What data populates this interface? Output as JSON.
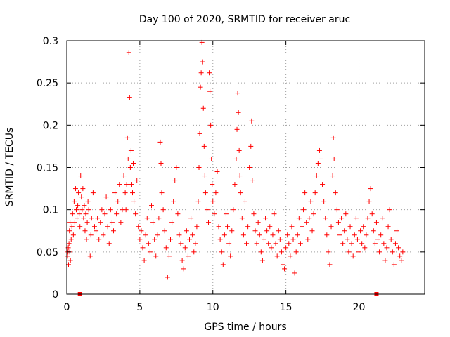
{
  "chart_data": {
    "type": "scatter",
    "title": "Day 100 of 2020, SRMTID for receiver aruc",
    "xlabel": "GPS time / hours",
    "ylabel": "SRMTID / TECUs",
    "xlim": [
      0,
      24.5
    ],
    "ylim": [
      0,
      0.3
    ],
    "xticks": [
      0,
      5,
      10,
      15,
      20
    ],
    "xtick_labels": [
      "0",
      "5",
      "10",
      "15",
      "20"
    ],
    "yticks": [
      0,
      0.05,
      0.1,
      0.15,
      0.2,
      0.25,
      0.3
    ],
    "ytick_labels": [
      "0",
      "0.05",
      "0.1",
      "0.15",
      "0.2",
      "0.25",
      "0.3"
    ],
    "grid": true,
    "marker": "+",
    "color": "#ff0000",
    "baseline_flags": [
      {
        "x": 0.9,
        "y": 0
      },
      {
        "x": 21.2,
        "y": 0
      }
    ],
    "series": [
      {
        "name": "SRMTID",
        "points": [
          [
            0.05,
            0.045
          ],
          [
            0.08,
            0.05
          ],
          [
            0.1,
            0.055
          ],
          [
            0.12,
            0.035
          ],
          [
            0.15,
            0.06
          ],
          [
            0.18,
            0.075
          ],
          [
            0.2,
            0.05
          ],
          [
            0.22,
            0.085
          ],
          [
            0.25,
            0.04
          ],
          [
            0.3,
            0.065
          ],
          [
            0.35,
            0.08
          ],
          [
            0.4,
            0.095
          ],
          [
            0.45,
            0.07
          ],
          [
            0.5,
            0.11
          ],
          [
            0.55,
            0.085
          ],
          [
            0.6,
            0.125
          ],
          [
            0.65,
            0.1
          ],
          [
            0.7,
            0.09
          ],
          [
            0.75,
            0.105
          ],
          [
            0.8,
            0.12
          ],
          [
            0.85,
            0.095
          ],
          [
            0.9,
            0.08
          ],
          [
            0.95,
            0.14
          ],
          [
            1.0,
            0.115
          ],
          [
            1.05,
            0.1
          ],
          [
            1.1,
            0.125
          ],
          [
            1.15,
            0.09
          ],
          [
            1.2,
            0.105
          ],
          [
            1.25,
            0.075
          ],
          [
            1.3,
            0.095
          ],
          [
            1.35,
            0.065
          ],
          [
            1.4,
            0.085
          ],
          [
            1.45,
            0.11
          ],
          [
            1.5,
            0.1
          ],
          [
            1.6,
            0.045
          ],
          [
            1.65,
            0.07
          ],
          [
            1.7,
            0.09
          ],
          [
            1.8,
            0.12
          ],
          [
            1.9,
            0.08
          ],
          [
            2.0,
            0.075
          ],
          [
            2.1,
            0.09
          ],
          [
            2.2,
            0.065
          ],
          [
            2.3,
            0.085
          ],
          [
            2.4,
            0.1
          ],
          [
            2.5,
            0.07
          ],
          [
            2.6,
            0.095
          ],
          [
            2.7,
            0.115
          ],
          [
            2.8,
            0.08
          ],
          [
            2.9,
            0.06
          ],
          [
            3.0,
            0.1
          ],
          [
            3.1,
            0.085
          ],
          [
            3.2,
            0.075
          ],
          [
            3.3,
            0.12
          ],
          [
            3.4,
            0.095
          ],
          [
            3.5,
            0.11
          ],
          [
            3.6,
            0.13
          ],
          [
            3.7,
            0.085
          ],
          [
            3.8,
            0.1
          ],
          [
            3.9,
            0.14
          ],
          [
            4.0,
            0.12
          ],
          [
            4.05,
            0.1
          ],
          [
            4.1,
            0.13
          ],
          [
            4.15,
            0.185
          ],
          [
            4.2,
            0.16
          ],
          [
            4.25,
            0.286
          ],
          [
            4.3,
            0.233
          ],
          [
            4.35,
            0.15
          ],
          [
            4.4,
            0.17
          ],
          [
            4.45,
            0.13
          ],
          [
            4.5,
            0.12
          ],
          [
            4.55,
            0.155
          ],
          [
            4.6,
            0.11
          ],
          [
            4.7,
            0.095
          ],
          [
            4.8,
            0.135
          ],
          [
            4.9,
            0.08
          ],
          [
            5.0,
            0.065
          ],
          [
            5.1,
            0.075
          ],
          [
            5.2,
            0.055
          ],
          [
            5.3,
            0.04
          ],
          [
            5.4,
            0.07
          ],
          [
            5.5,
            0.09
          ],
          [
            5.6,
            0.06
          ],
          [
            5.7,
            0.05
          ],
          [
            5.8,
            0.105
          ],
          [
            5.9,
            0.085
          ],
          [
            6.0,
            0.065
          ],
          [
            6.1,
            0.045
          ],
          [
            6.2,
            0.07
          ],
          [
            6.3,
            0.09
          ],
          [
            6.4,
            0.18
          ],
          [
            6.45,
            0.155
          ],
          [
            6.5,
            0.12
          ],
          [
            6.6,
            0.1
          ],
          [
            6.7,
            0.075
          ],
          [
            6.8,
            0.055
          ],
          [
            6.9,
            0.02
          ],
          [
            7.0,
            0.045
          ],
          [
            7.1,
            0.065
          ],
          [
            7.2,
            0.085
          ],
          [
            7.3,
            0.11
          ],
          [
            7.4,
            0.135
          ],
          [
            7.5,
            0.15
          ],
          [
            7.6,
            0.095
          ],
          [
            7.7,
            0.07
          ],
          [
            7.8,
            0.06
          ],
          [
            7.9,
            0.04
          ],
          [
            8.0,
            0.03
          ],
          [
            8.1,
            0.055
          ],
          [
            8.2,
            0.075
          ],
          [
            8.3,
            0.045
          ],
          [
            8.4,
            0.065
          ],
          [
            8.5,
            0.09
          ],
          [
            8.6,
            0.07
          ],
          [
            8.7,
            0.05
          ],
          [
            8.8,
            0.06
          ],
          [
            8.9,
            0.08
          ],
          [
            9.0,
            0.11
          ],
          [
            9.05,
            0.15
          ],
          [
            9.1,
            0.19
          ],
          [
            9.15,
            0.245
          ],
          [
            9.2,
            0.262
          ],
          [
            9.25,
            0.298
          ],
          [
            9.3,
            0.275
          ],
          [
            9.35,
            0.22
          ],
          [
            9.4,
            0.175
          ],
          [
            9.45,
            0.14
          ],
          [
            9.5,
            0.12
          ],
          [
            9.6,
            0.1
          ],
          [
            9.7,
            0.085
          ],
          [
            9.75,
            0.262
          ],
          [
            9.8,
            0.24
          ],
          [
            9.85,
            0.2
          ],
          [
            9.9,
            0.16
          ],
          [
            9.95,
            0.13
          ],
          [
            10.0,
            0.11
          ],
          [
            10.1,
            0.095
          ],
          [
            10.2,
            0.12
          ],
          [
            10.3,
            0.145
          ],
          [
            10.4,
            0.08
          ],
          [
            10.5,
            0.065
          ],
          [
            10.6,
            0.05
          ],
          [
            10.7,
            0.035
          ],
          [
            10.8,
            0.07
          ],
          [
            10.9,
            0.095
          ],
          [
            11.0,
            0.08
          ],
          [
            11.1,
            0.06
          ],
          [
            11.2,
            0.045
          ],
          [
            11.3,
            0.075
          ],
          [
            11.4,
            0.1
          ],
          [
            11.5,
            0.13
          ],
          [
            11.6,
            0.16
          ],
          [
            11.65,
            0.195
          ],
          [
            11.7,
            0.238
          ],
          [
            11.75,
            0.215
          ],
          [
            11.8,
            0.17
          ],
          [
            11.85,
            0.14
          ],
          [
            11.9,
            0.12
          ],
          [
            12.0,
            0.09
          ],
          [
            12.1,
            0.07
          ],
          [
            12.2,
            0.11
          ],
          [
            12.3,
            0.06
          ],
          [
            12.4,
            0.08
          ],
          [
            12.5,
            0.15
          ],
          [
            12.6,
            0.175
          ],
          [
            12.65,
            0.205
          ],
          [
            12.7,
            0.135
          ],
          [
            12.8,
            0.095
          ],
          [
            12.9,
            0.075
          ],
          [
            13.0,
            0.06
          ],
          [
            13.1,
            0.085
          ],
          [
            13.2,
            0.07
          ],
          [
            13.3,
            0.05
          ],
          [
            13.4,
            0.04
          ],
          [
            13.5,
            0.065
          ],
          [
            13.6,
            0.09
          ],
          [
            13.7,
            0.075
          ],
          [
            13.8,
            0.06
          ],
          [
            13.9,
            0.08
          ],
          [
            14.0,
            0.055
          ],
          [
            14.1,
            0.07
          ],
          [
            14.2,
            0.095
          ],
          [
            14.3,
            0.06
          ],
          [
            14.4,
            0.045
          ],
          [
            14.5,
            0.075
          ],
          [
            14.6,
            0.065
          ],
          [
            14.7,
            0.05
          ],
          [
            14.8,
            0.035
          ],
          [
            14.9,
            0.03
          ],
          [
            15.0,
            0.055
          ],
          [
            15.1,
            0.07
          ],
          [
            15.2,
            0.06
          ],
          [
            15.3,
            0.045
          ],
          [
            15.4,
            0.08
          ],
          [
            15.5,
            0.065
          ],
          [
            15.6,
            0.025
          ],
          [
            15.7,
            0.05
          ],
          [
            15.8,
            0.07
          ],
          [
            15.9,
            0.09
          ],
          [
            16.0,
            0.06
          ],
          [
            16.1,
            0.08
          ],
          [
            16.2,
            0.1
          ],
          [
            16.3,
            0.12
          ],
          [
            16.4,
            0.085
          ],
          [
            16.5,
            0.065
          ],
          [
            16.6,
            0.09
          ],
          [
            16.7,
            0.11
          ],
          [
            16.8,
            0.075
          ],
          [
            16.9,
            0.095
          ],
          [
            17.0,
            0.12
          ],
          [
            17.1,
            0.14
          ],
          [
            17.2,
            0.155
          ],
          [
            17.3,
            0.17
          ],
          [
            17.4,
            0.16
          ],
          [
            17.5,
            0.13
          ],
          [
            17.6,
            0.11
          ],
          [
            17.7,
            0.09
          ],
          [
            17.8,
            0.07
          ],
          [
            17.9,
            0.05
          ],
          [
            18.0,
            0.035
          ],
          [
            18.1,
            0.08
          ],
          [
            18.2,
            0.14
          ],
          [
            18.25,
            0.185
          ],
          [
            18.3,
            0.16
          ],
          [
            18.4,
            0.12
          ],
          [
            18.5,
            0.1
          ],
          [
            18.6,
            0.085
          ],
          [
            18.7,
            0.07
          ],
          [
            18.8,
            0.09
          ],
          [
            18.9,
            0.06
          ],
          [
            19.0,
            0.075
          ],
          [
            19.1,
            0.095
          ],
          [
            19.2,
            0.065
          ],
          [
            19.3,
            0.05
          ],
          [
            19.4,
            0.08
          ],
          [
            19.5,
            0.06
          ],
          [
            19.6,
            0.045
          ],
          [
            19.7,
            0.07
          ],
          [
            19.8,
            0.09
          ],
          [
            19.9,
            0.065
          ],
          [
            20.0,
            0.05
          ],
          [
            20.1,
            0.075
          ],
          [
            20.2,
            0.06
          ],
          [
            20.3,
            0.08
          ],
          [
            20.4,
            0.055
          ],
          [
            20.5,
            0.07
          ],
          [
            20.6,
            0.09
          ],
          [
            20.7,
            0.11
          ],
          [
            20.8,
            0.125
          ],
          [
            20.9,
            0.095
          ],
          [
            21.0,
            0.075
          ],
          [
            21.1,
            0.06
          ],
          [
            21.2,
            0.085
          ],
          [
            21.3,
            0.065
          ],
          [
            21.4,
            0.05
          ],
          [
            21.5,
            0.07
          ],
          [
            21.6,
            0.09
          ],
          [
            21.7,
            0.06
          ],
          [
            21.8,
            0.04
          ],
          [
            21.9,
            0.055
          ],
          [
            22.0,
            0.08
          ],
          [
            22.1,
            0.1
          ],
          [
            22.2,
            0.065
          ],
          [
            22.3,
            0.05
          ],
          [
            22.4,
            0.035
          ],
          [
            22.5,
            0.06
          ],
          [
            22.6,
            0.075
          ],
          [
            22.7,
            0.055
          ],
          [
            22.8,
            0.045
          ],
          [
            22.9,
            0.04
          ],
          [
            23.0,
            0.05
          ]
        ]
      }
    ]
  }
}
